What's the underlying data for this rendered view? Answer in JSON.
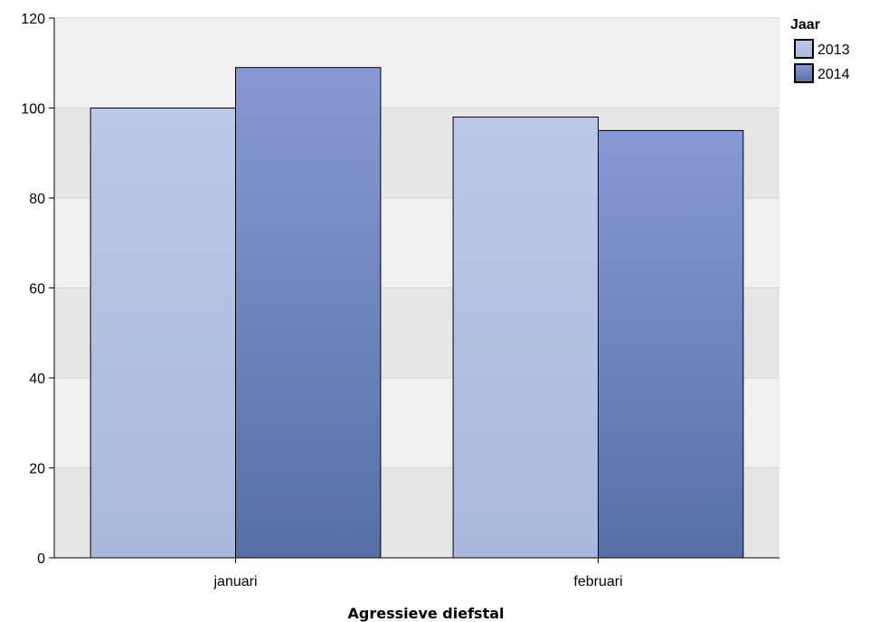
{
  "chart_data": {
    "type": "bar",
    "categories": [
      "januari",
      "februari"
    ],
    "series": [
      {
        "name": "2013",
        "values": [
          100,
          98
        ],
        "color_top": "#bcc8e8",
        "color_bottom": "#a9b8dd"
      },
      {
        "name": "2014",
        "values": [
          109,
          95
        ],
        "color_top": "#8799d4",
        "color_bottom": "#5670a6"
      }
    ],
    "title": "",
    "xlabel": "Agressieve diefstal",
    "ylabel": "",
    "ylim": [
      0,
      120
    ],
    "yticks": [
      0,
      20,
      40,
      60,
      80,
      100,
      120
    ],
    "grid": true,
    "legend": {
      "title": "Jaar",
      "position": "top-right"
    },
    "colors": {
      "band_light": "#f0f0f0",
      "band_dark": "#e6e6e6",
      "gridline": "#d2d2d2",
      "axis": "#000000",
      "bar_stroke": "#000000"
    }
  }
}
